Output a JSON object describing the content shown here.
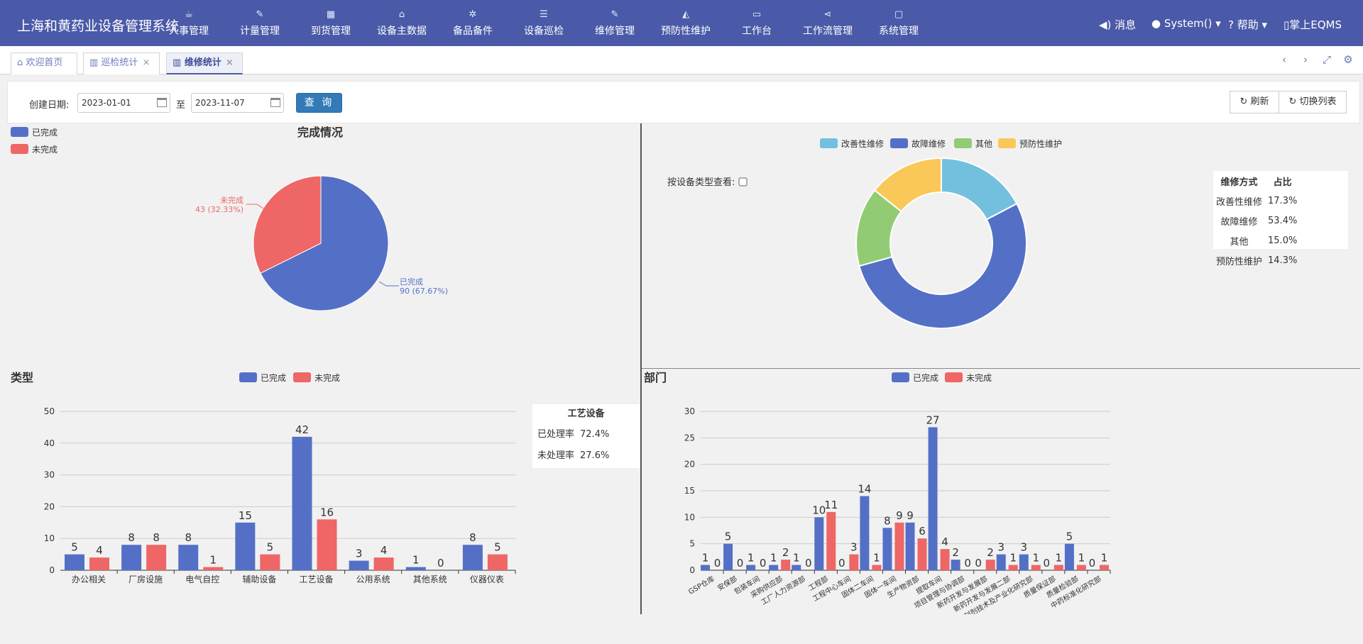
{
  "app": {
    "title": "上海和黄药业设备管理系统"
  },
  "nav": [
    {
      "label": "人事管理",
      "icon": "coffee-icon"
    },
    {
      "label": "计量管理",
      "icon": "wrench-icon"
    },
    {
      "label": "到货管理",
      "icon": "grid-icon"
    },
    {
      "label": "设备主数据",
      "icon": "bank-icon"
    },
    {
      "label": "备品备件",
      "icon": "gears-icon"
    },
    {
      "label": "设备巡检",
      "icon": "list-icon"
    },
    {
      "label": "维修管理",
      "icon": "wrench-icon"
    },
    {
      "label": "预防性维护",
      "icon": "area-chart-icon"
    },
    {
      "label": "工作台",
      "icon": "laptop-icon"
    },
    {
      "label": "工作流管理",
      "icon": "share-icon"
    },
    {
      "label": "系统管理",
      "icon": "desktop-icon"
    }
  ],
  "header_right": {
    "messages": "消息",
    "user": "System()",
    "help": "帮助",
    "mobile": "掌上EQMS"
  },
  "tabs": [
    {
      "label": "欢迎首页"
    },
    {
      "label": "巡检统计"
    },
    {
      "label": "维修统计"
    }
  ],
  "filter": {
    "date_label": "创建日期:",
    "from": "2023-01-01",
    "to_label": "至",
    "to": "2023-11-07",
    "query": "查 询",
    "refresh": "刷新",
    "switch_table": "切换列表"
  },
  "colors": {
    "blue": "#5470c6",
    "red": "#ee6666",
    "light_blue": "#73c0de",
    "green": "#91cc75",
    "yellow": "#fac858",
    "nav": "#4a5aa8"
  },
  "chart_data": [
    {
      "type": "pie",
      "title": "完成情况",
      "legend": [
        "已完成",
        "未完成"
      ],
      "slices": [
        {
          "name": "已完成",
          "value": 90,
          "label": "90 (67.67%)",
          "color": "#5470c6"
        },
        {
          "name": "未完成",
          "value": 43,
          "label": "43 (32.33%)",
          "color": "#ee6666"
        }
      ]
    },
    {
      "type": "pie",
      "variant": "donut",
      "checkbox_label": "按设备类型查看:",
      "legend": [
        "改善性维修",
        "故障维修",
        "其他",
        "预防性维护"
      ],
      "slices": [
        {
          "name": "改善性维修",
          "value": 17.3,
          "color": "#73c0de"
        },
        {
          "name": "故障维修",
          "value": 53.4,
          "color": "#5470c6"
        },
        {
          "name": "其他",
          "value": 15.0,
          "color": "#91cc75"
        },
        {
          "name": "预防性维护",
          "value": 14.3,
          "color": "#fac858"
        }
      ],
      "table": {
        "headers": [
          "维修方式",
          "占比"
        ],
        "rows": [
          [
            "改善性维修",
            "17.3%"
          ],
          [
            "故障维修",
            "53.4%"
          ],
          [
            "其他",
            "15.0%"
          ],
          [
            "预防性维护",
            "14.3%"
          ]
        ]
      }
    },
    {
      "type": "bar",
      "title": "类型",
      "categories": [
        "办公相关",
        "厂房设施",
        "电气自控",
        "辅助设备",
        "工艺设备",
        "公用系统",
        "其他系统",
        "仪器仪表"
      ],
      "series": [
        {
          "name": "已完成",
          "values": [
            5,
            8,
            8,
            15,
            42,
            3,
            1,
            8
          ],
          "color": "#5470c6"
        },
        {
          "name": "未完成",
          "values": [
            4,
            8,
            1,
            5,
            16,
            4,
            0,
            5
          ],
          "color": "#ee6666"
        }
      ],
      "ylim": [
        0,
        50
      ],
      "yticks": [
        0,
        10,
        20,
        30,
        40,
        50
      ],
      "grid": true,
      "legend_position": "top-center",
      "info": {
        "title": "工艺设备",
        "rows": [
          [
            "已处理率",
            "72.4%"
          ],
          [
            "未处理率",
            "27.6%"
          ]
        ]
      }
    },
    {
      "type": "bar",
      "title": "部门",
      "categories": [
        "GSP仓库",
        "安保部",
        "包装车间",
        "采购供应部",
        "工厂人力资源部",
        "工程部",
        "工程中心车间",
        "固体二车间",
        "固体一车间",
        "生产物资部",
        "提取车间",
        "项目管理与协调部",
        "新药开发与发展部",
        "新药开发与发展二部",
        "制剂技术及产业化研究部",
        "质量保证部",
        "质量检验部",
        "中药标准化研究部"
      ],
      "series": [
        {
          "name": "已完成",
          "values": [
            1,
            5,
            1,
            1,
            1,
            10,
            0,
            14,
            8,
            9,
            27,
            2,
            0,
            3,
            3,
            0,
            5,
            0
          ],
          "color": "#5470c6"
        },
        {
          "name": "未完成",
          "values": [
            0,
            0,
            0,
            2,
            0,
            11,
            3,
            1,
            9,
            6,
            4,
            0,
            2,
            1,
            1,
            1,
            1,
            1
          ],
          "color": "#ee6666"
        }
      ],
      "ylim": [
        0,
        30
      ],
      "yticks": [
        0,
        5,
        10,
        15,
        20,
        25,
        30
      ],
      "grid": true,
      "legend_position": "top-center"
    }
  ]
}
